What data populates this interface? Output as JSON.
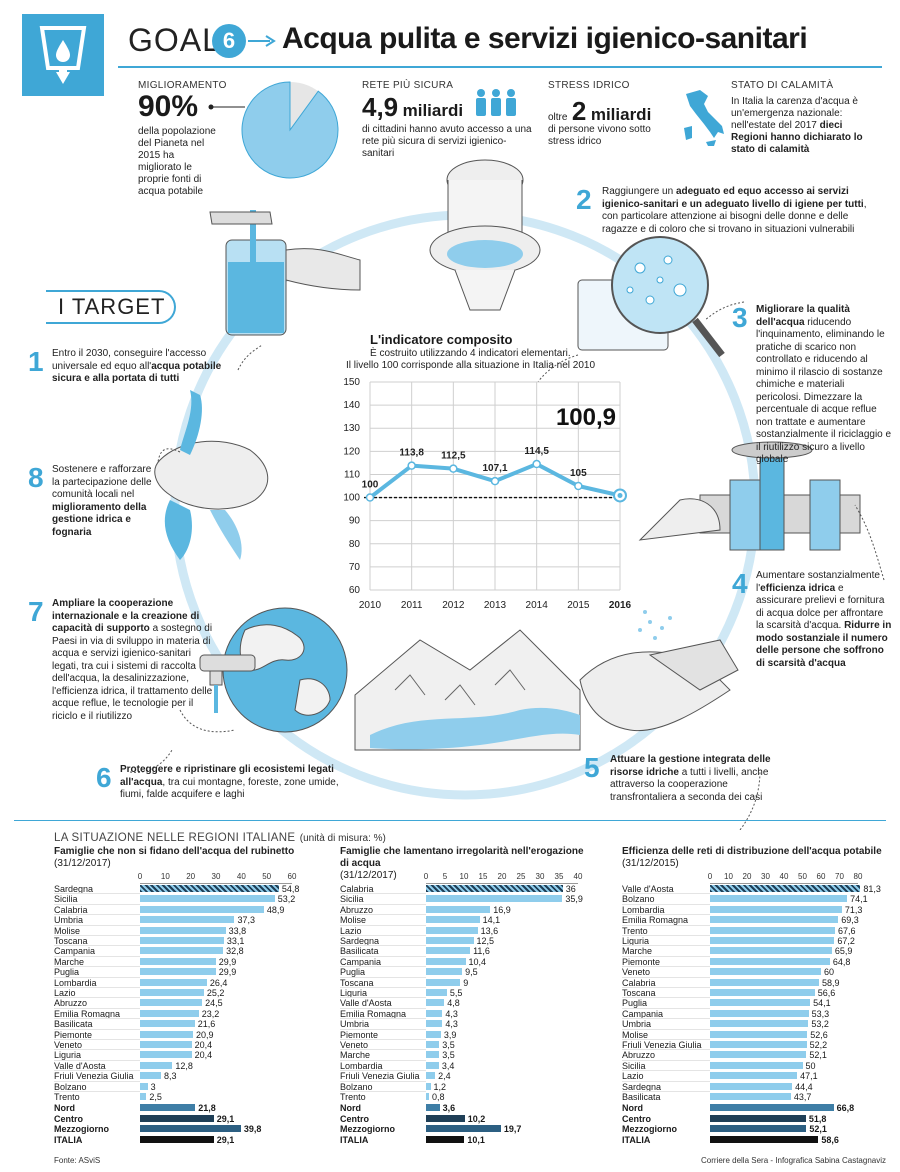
{
  "header": {
    "goal_label": "GOAL",
    "goal_number": "6",
    "title": "Acqua pulita e servizi igienico-sanitari"
  },
  "stats": {
    "s1": {
      "label": "MIGLIORAMENTO",
      "value": "90%",
      "text": "della popolazione del Pianeta nel 2015 ha migliorato le proprie fonti di acqua potabile",
      "pie_fraction": 0.9
    },
    "s2": {
      "label": "RETE PIÙ SICURA",
      "value": "4,9",
      "unit": "miliardi",
      "text": "di cittadini hanno avuto accesso a una rete più sicura di servizi igienico-sanitari"
    },
    "s3": {
      "label": "STRESS IDRICO",
      "prefix": "oltre",
      "value": "2",
      "unit": "miliardi",
      "text": "di persone vivono sotto stress idrico"
    },
    "s4": {
      "label": "STATO DI CALAMITÀ",
      "text1": "In Italia la carenza d'acqua è un'emergenza nazionale: nell'estate del 2017 ",
      "text2": "dieci Regioni hanno dichiarato lo stato di calamità"
    }
  },
  "targets_label": "I TARGET",
  "targets": [
    {
      "n": "1",
      "a": "Entro il 2030, conseguire l'accesso universale ed equo all'",
      "b": "acqua potabile sicura e alla portata di tutti",
      "c": ""
    },
    {
      "n": "2",
      "a": "Raggiungere un ",
      "b": "adeguato ed equo accesso ai servizi igienico-sanitari e un adeguato livello di igiene per tutti",
      "c": ", con particolare attenzione ai bisogni delle donne e delle ragazze e di coloro che si trovano in situazioni vulnerabili"
    },
    {
      "n": "3",
      "a": "",
      "b": "Migliorare la qualità dell'acqua",
      "c": " riducendo l'inquinamento, eliminando le pratiche di scarico non controllato e riducendo al minimo il rilascio di sostanze chimiche e materiali pericolosi. Dimezzare la percentuale di acque reflue non trattate e aumentare sostanzialmente il riciclaggio e il riutilizzo sicuro a livello globale"
    },
    {
      "n": "4",
      "a": "Aumentare sostanzialmente l'",
      "b": "efficienza idrica",
      "c": " e assicurare prelievi e fornitura di acqua dolce per affrontare la scarsità d'acqua. ",
      "d": "Ridurre in modo sostanziale il numero delle persone che soffrono di scarsità d'acqua"
    },
    {
      "n": "5",
      "a": "",
      "b": "Attuare la gestione integrata delle risorse idriche",
      "c": " a tutti i livelli, anche attraverso la cooperazione transfrontaliera a seconda dei casi"
    },
    {
      "n": "6",
      "a": "",
      "b": "Proteggere e ripristinare gli ecosistemi legati all'acqua",
      "c": ", tra cui montagne, foreste, zone umide, fiumi, falde acquifere e laghi"
    },
    {
      "n": "7",
      "a": "",
      "b": "Ampliare la cooperazione internazionale e la creazione di capacità di supporto",
      "c": " a sostegno di Paesi in via di sviluppo in materia di acqua e servizi igienico-sanitari legati, tra cui i sistemi di raccolta dell'acqua, la desalinizzazione, l'efficienza idrica, il trattamento delle acque reflue, le tecnologie per il riciclo e il riutilizzo"
    },
    {
      "n": "8",
      "a": "Sostenere e rafforzare la partecipazione delle comunità locali nel ",
      "b": "miglioramento della gestione idrica e fognaria",
      "c": ""
    }
  ],
  "chart_data": [
    {
      "type": "line",
      "title": "L'indicatore composito",
      "subtitle1": "È costruito utilizzando 4 indicatori elementari.",
      "subtitle2": "Il livello 100 corrisponde alla situazione in Italia nel 2010",
      "x": [
        "2010",
        "2011",
        "2012",
        "2013",
        "2014",
        "2015",
        "2016"
      ],
      "values": [
        100,
        113.8,
        112.5,
        107.1,
        114.5,
        105,
        100.9
      ],
      "value_labels": [
        "100",
        "113,8",
        "112,5",
        "107,1",
        "114,5",
        "105",
        ""
      ],
      "highlight": "100,9",
      "ylim": [
        60,
        150
      ],
      "yticks": [
        "150",
        "140",
        "130",
        "120",
        "110",
        "100",
        "90",
        "80",
        "70",
        "60"
      ],
      "baseline": 100,
      "grid": true,
      "color": "#5bb7e0"
    },
    {
      "type": "bar",
      "title": "Famiglie che non si fidano dell'acqua del rubinetto",
      "date": "(31/12/2017)",
      "xticks": [
        "0",
        "10",
        "20",
        "30",
        "40",
        "50",
        "60"
      ],
      "xlim": [
        0,
        60
      ],
      "categories": [
        "Sardegna",
        "Sicilia",
        "Calabria",
        "Umbria",
        "Molise",
        "Toscana",
        "Campania",
        "Marche",
        "Puglia",
        "Lombardia",
        "Lazio",
        "Abruzzo",
        "Emilia Romagna",
        "Basilicata",
        "Piemonte",
        "Veneto",
        "Liguria",
        "Valle d'Aosta",
        "Friuli Venezia Giulia",
        "Bolzano",
        "Trento",
        "Nord",
        "Centro",
        "Mezzogiorno",
        "ITALIA"
      ],
      "values": [
        54.8,
        53.2,
        48.9,
        37.3,
        33.8,
        33.1,
        32.8,
        29.9,
        29.9,
        26.4,
        25.2,
        24.5,
        23.2,
        21.6,
        20.9,
        20.4,
        20.4,
        12.8,
        8.3,
        3,
        2.5,
        21.8,
        29.1,
        39.8,
        29.1
      ],
      "labels": [
        "54,8",
        "53,2",
        "48,9",
        "37,3",
        "33,8",
        "33,1",
        "32,8",
        "29,9",
        "29,9",
        "26,4",
        "25,2",
        "24,5",
        "23,2",
        "21,6",
        "20,9",
        "20,4",
        "20,4",
        "12,8",
        "8,3",
        "3",
        "2,5",
        "21,8",
        "29,1",
        "39,8",
        "29,1"
      ]
    },
    {
      "type": "bar",
      "title": "Famiglie che lamentano irregolarità nell'erogazione di acqua",
      "date": "(31/12/2017)",
      "xticks": [
        "0",
        "5",
        "10",
        "15",
        "20",
        "25",
        "30",
        "35",
        "40"
      ],
      "xlim": [
        0,
        40
      ],
      "categories": [
        "Calabria",
        "Sicilia",
        "Abruzzo",
        "Molise",
        "Lazio",
        "Sardegna",
        "Basilicata",
        "Campania",
        "Puglia",
        "Toscana",
        "Liguria",
        "Valle d'Aosta",
        "Emilia Romagna",
        "Umbria",
        "Piemonte",
        "Veneto",
        "Marche",
        "Lombardia",
        "Friuli Venezia Giulia",
        "Bolzano",
        "Trento",
        "Nord",
        "Centro",
        "Mezzogiorno",
        "ITALIA"
      ],
      "values": [
        36,
        35.9,
        16.9,
        14.1,
        13.6,
        12.5,
        11.6,
        10.4,
        9.5,
        9,
        5.5,
        4.8,
        4.3,
        4.3,
        3.9,
        3.5,
        3.5,
        3.4,
        2.4,
        1.2,
        0.8,
        3.6,
        10.2,
        19.7,
        10.1
      ],
      "labels": [
        "36",
        "35,9",
        "16,9",
        "14,1",
        "13,6",
        "12,5",
        "11,6",
        "10,4",
        "9,5",
        "9",
        "5,5",
        "4,8",
        "4,3",
        "4,3",
        "3,9",
        "3,5",
        "3,5",
        "3,4",
        "2,4",
        "1,2",
        "0,8",
        "3,6",
        "10,2",
        "19,7",
        "10,1"
      ]
    },
    {
      "type": "bar",
      "title": "Efficienza delle reti di distribuzione dell'acqua potabile",
      "date": "(31/12/2015)",
      "xticks": [
        "0",
        "10",
        "20",
        "30",
        "40",
        "50",
        "60",
        "70",
        "80"
      ],
      "xlim": [
        0,
        80
      ],
      "categories": [
        "Valle d'Aosta",
        "Bolzano",
        "Lombardia",
        "Emilia Romagna",
        "Trento",
        "Liguria",
        "Marche",
        "Piemonte",
        "Veneto",
        "Calabria",
        "Toscana",
        "Puglia",
        "Campania",
        "Umbria",
        "Molise",
        "Friuli Venezia Giulia",
        "Abruzzo",
        "Sicilia",
        "Lazio",
        "Sardegna",
        "Basilicata",
        "Nord",
        "Centro",
        "Mezzogiorno",
        "ITALIA"
      ],
      "values": [
        81.3,
        74.1,
        71.3,
        69.3,
        67.6,
        67.2,
        65.9,
        64.8,
        60,
        58.9,
        56.6,
        54.1,
        53.3,
        53.2,
        52.6,
        52.2,
        52.1,
        50,
        47.1,
        44.4,
        43.7,
        66.8,
        51.8,
        52.1,
        58.6
      ],
      "labels": [
        "81,3",
        "74,1",
        "71,3",
        "69,3",
        "67,6",
        "67,2",
        "65,9",
        "64,8",
        "60",
        "58,9",
        "56,6",
        "54,1",
        "53,3",
        "53,2",
        "52,6",
        "52,2",
        "52,1",
        "50",
        "47,1",
        "44,4",
        "43,7",
        "66,8",
        "51,8",
        "52,1",
        "58,6"
      ]
    }
  ],
  "regions": {
    "title": "LA SITUAZIONE NELLE REGIONI ITALIANE",
    "unit": "(unità di misura: %)"
  },
  "footer": {
    "source": "Fonte: ASviS",
    "credit": "Corriere della Sera - Infografica Sabina Castagnaviz"
  },
  "colors": {
    "accent": "#3fa7d6",
    "bar": "#8fcdec",
    "dark": "#1f3f57",
    "mid": "#3e7ea6"
  }
}
